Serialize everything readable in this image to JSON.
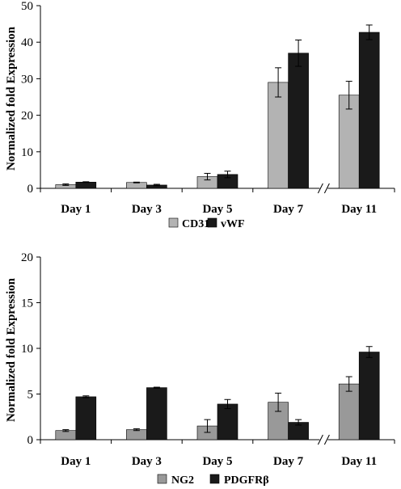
{
  "chart_data": [
    {
      "type": "bar",
      "ylabel": "Normalized fold Expression",
      "ylim": [
        0,
        50
      ],
      "yticks": [
        0,
        10,
        20,
        30,
        40,
        50
      ],
      "categories": [
        "Day 1",
        "Day 3",
        "Day 5",
        "Day 7",
        "Day 11"
      ],
      "axis_break": "between Day 7 and Day 11",
      "legend": "bottom-center",
      "series": [
        {
          "name": "CD31",
          "color": "#b3b3b3",
          "values": [
            1.0,
            1.6,
            3.2,
            29.0,
            25.5
          ],
          "errors": [
            0.2,
            0.1,
            0.9,
            4.0,
            3.8
          ]
        },
        {
          "name": "vWF",
          "color": "#1a1a1a",
          "values": [
            1.7,
            0.9,
            3.8,
            37.0,
            42.7
          ],
          "errors": [
            0.1,
            0.2,
            0.9,
            3.6,
            2.0
          ]
        }
      ]
    },
    {
      "type": "bar",
      "ylabel": "Normalized fold Expression",
      "ylim": [
        0,
        20
      ],
      "yticks": [
        0,
        5,
        10,
        15,
        20
      ],
      "categories": [
        "Day 1",
        "Day 3",
        "Day 5",
        "Day 7",
        "Day 11"
      ],
      "axis_break": "between Day 7 and Day 11",
      "legend": "bottom-center",
      "series": [
        {
          "name": "NG2",
          "color": "#999999",
          "values": [
            1.0,
            1.1,
            1.5,
            4.1,
            6.1
          ],
          "errors": [
            0.1,
            0.1,
            0.7,
            1.0,
            0.8
          ]
        },
        {
          "name": "PDGFRβ",
          "color": "#1a1a1a",
          "values": [
            4.7,
            5.7,
            3.9,
            1.9,
            9.6
          ],
          "errors": [
            0.1,
            0.05,
            0.5,
            0.3,
            0.6
          ]
        }
      ]
    }
  ]
}
